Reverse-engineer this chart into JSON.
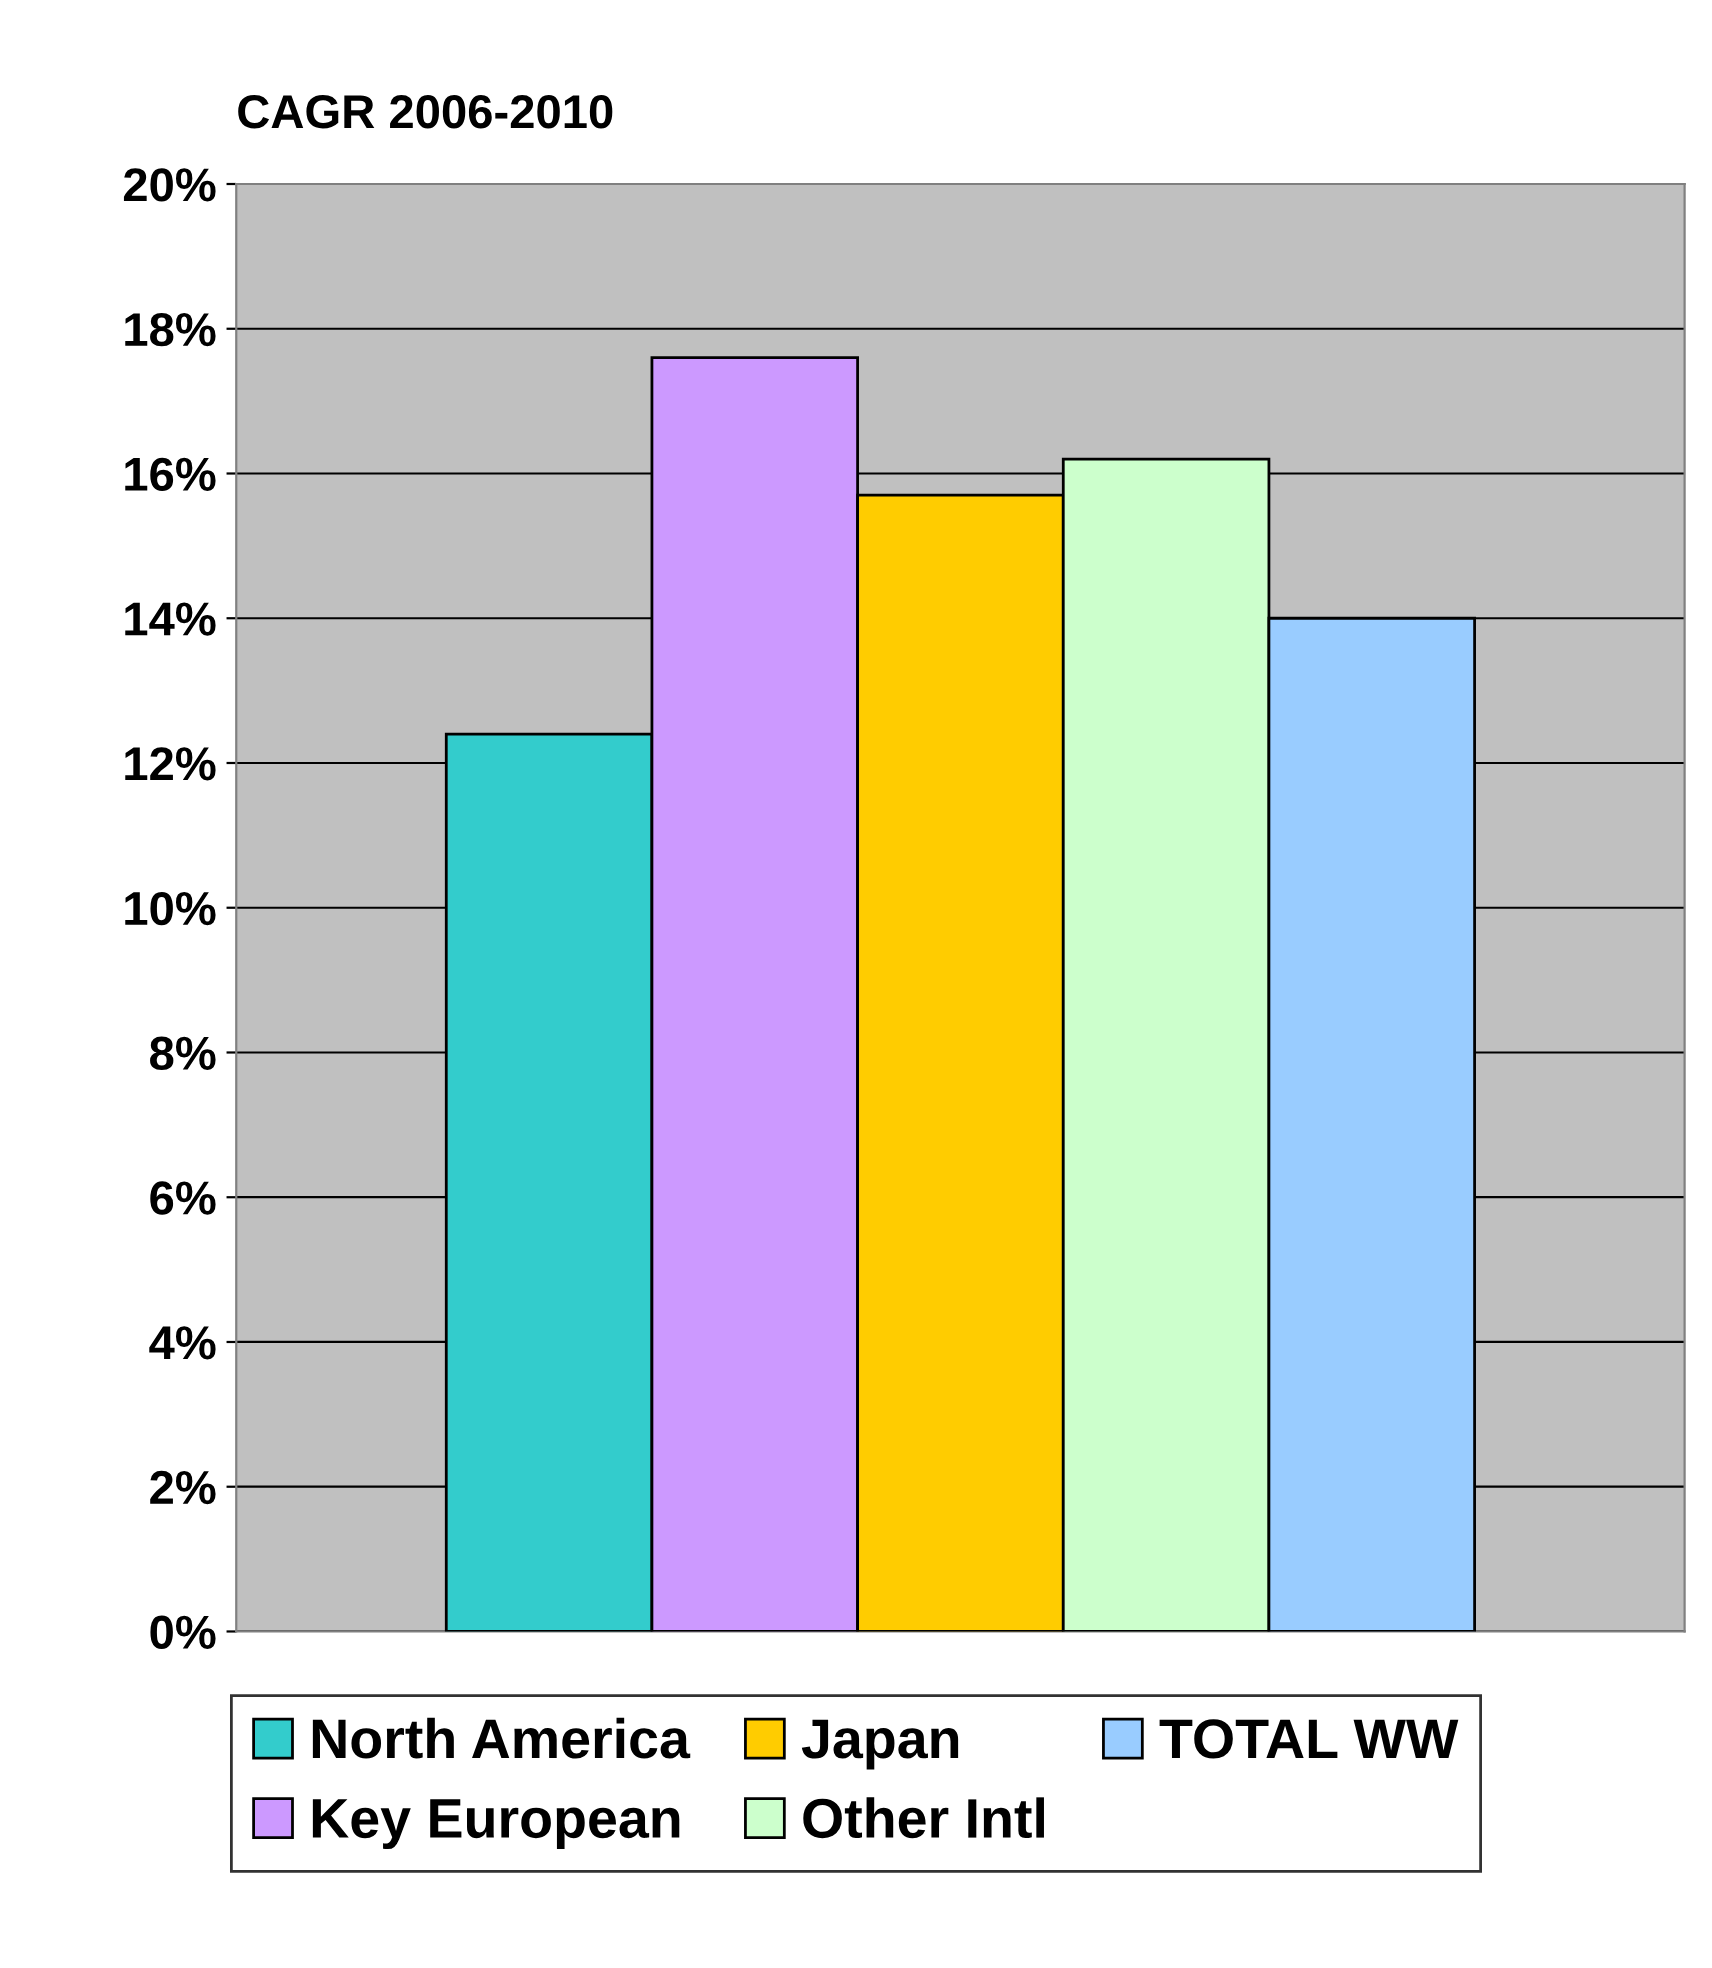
{
  "chart_data": {
    "type": "bar",
    "title": "CAGR 2006-2010",
    "categories": [
      null
    ],
    "series": [
      {
        "name": "North America",
        "color": "#33cccc",
        "values": [
          12.4
        ]
      },
      {
        "name": "Key European",
        "color": "#cc99ff",
        "values": [
          17.6
        ]
      },
      {
        "name": "Japan",
        "color": "#ffcc00",
        "values": [
          15.7
        ]
      },
      {
        "name": "Other Intl",
        "color": "#ccffcc",
        "values": [
          16.2
        ]
      },
      {
        "name": "TOTAL WW",
        "color": "#99ccff",
        "values": [
          14.0
        ]
      }
    ],
    "ylim": [
      0,
      20
    ],
    "yticks": [
      {
        "value": 0,
        "label": "0%"
      },
      {
        "value": 2,
        "label": "2%"
      },
      {
        "value": 4,
        "label": "4%"
      },
      {
        "value": 6,
        "label": "6%"
      },
      {
        "value": 8,
        "label": "8%"
      },
      {
        "value": 10,
        "label": "10%"
      },
      {
        "value": 12,
        "label": "12%"
      },
      {
        "value": 14,
        "label": "14%"
      },
      {
        "value": 16,
        "label": "16%"
      },
      {
        "value": 18,
        "label": "18%"
      },
      {
        "value": 20,
        "label": "20%"
      }
    ],
    "grid": "y",
    "legend": "bottom"
  }
}
